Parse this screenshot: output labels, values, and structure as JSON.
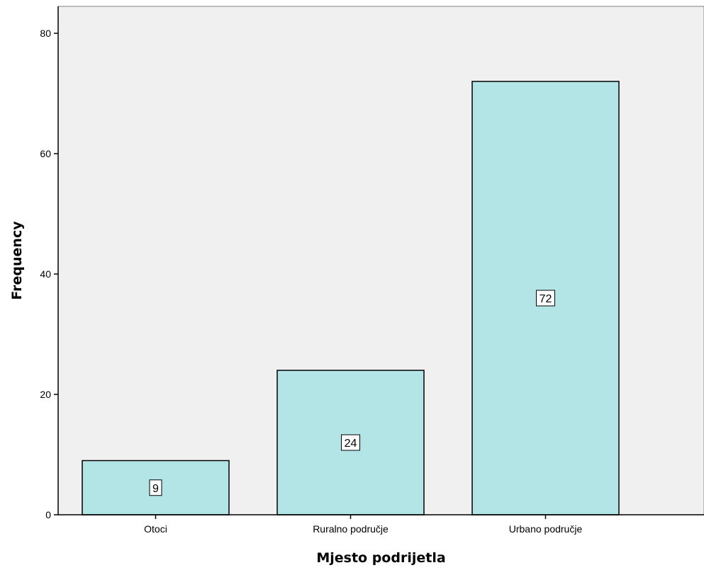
{
  "chart_data": {
    "type": "bar",
    "categories": [
      "Otoci",
      "Ruralno područje",
      "Urbano područje"
    ],
    "values": [
      9,
      24,
      72
    ],
    "data_labels": [
      "9",
      "24",
      "72"
    ],
    "title": "",
    "xlabel": "Mjesto podrijetla",
    "ylabel": "Frequency",
    "ylim": [
      0,
      80
    ],
    "yticks": [
      0,
      20,
      40,
      60,
      80
    ],
    "ytick_labels": [
      "0",
      "20",
      "40",
      "60",
      "80"
    ],
    "grid": false,
    "colors": {
      "plot_background": "#f0f0f0",
      "bar_fill": "#b3e5e6",
      "bar_stroke": "#000000",
      "axis": "#000000"
    }
  }
}
